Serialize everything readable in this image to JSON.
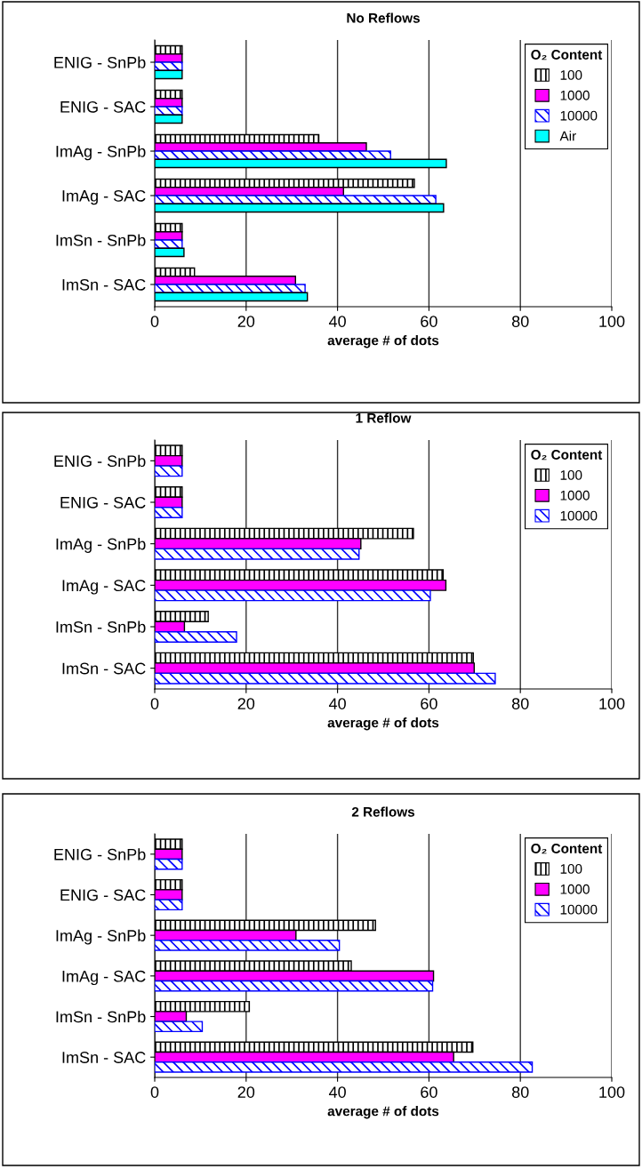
{
  "chart_data": [
    {
      "type": "bar",
      "orientation": "horizontal",
      "title": "No Reflows",
      "xlabel": "average # of dots",
      "legend_title": "O₂ Content",
      "legend": "top right",
      "grid": "x",
      "categories": [
        "ENIG - SnPb",
        "ENIG - SAC",
        "ImAg - SnPb",
        "ImAg - SAC",
        "ImSn - SnPb",
        "ImSn - SAC"
      ],
      "xlim": [
        0,
        100
      ],
      "xticks": [
        0,
        20,
        40,
        60,
        80,
        100
      ],
      "series": [
        {
          "name": "100",
          "color": "#000000",
          "values": [
            6,
            6,
            35.9,
            56.8,
            6,
            8.7
          ]
        },
        {
          "name": "1000",
          "color": "#ff00ff",
          "values": [
            6,
            6,
            46.3,
            41.3,
            6,
            30.8
          ]
        },
        {
          "name": "10000",
          "color": "#0000ff",
          "values": [
            6,
            6,
            51.6,
            61.5,
            6,
            32.9
          ]
        },
        {
          "name": "Air",
          "color": "#00ffff",
          "values": [
            6,
            6,
            63.8,
            63.2,
            6.4,
            33.4
          ]
        }
      ]
    },
    {
      "type": "bar",
      "orientation": "horizontal",
      "title": "1 Reflow",
      "xlabel": "average # of dots",
      "legend_title": "O₂ Content",
      "legend": "top right",
      "grid": "x",
      "categories": [
        "ENIG - SnPb",
        "ENIG - SAC",
        "ImAg - SnPb",
        "ImAg - SAC",
        "ImSn - SnPb",
        "ImSn - SAC"
      ],
      "xlim": [
        0,
        100
      ],
      "xticks": [
        0,
        20,
        40,
        60,
        80,
        100
      ],
      "series": [
        {
          "name": "100",
          "color": "#000000",
          "values": [
            6,
            6,
            56.6,
            63.1,
            11.7,
            69.7
          ]
        },
        {
          "name": "1000",
          "color": "#ff00ff",
          "values": [
            6,
            6,
            45.1,
            63.7,
            6.5,
            69.9
          ]
        },
        {
          "name": "10000",
          "color": "#0000ff",
          "values": [
            6,
            6,
            44.7,
            60.3,
            17.9,
            74.5
          ]
        }
      ]
    },
    {
      "type": "bar",
      "orientation": "horizontal",
      "title": "2 Reflows",
      "xlabel": "average # of dots",
      "legend_title": "O₂ Content",
      "legend": "top right",
      "grid": "x",
      "categories": [
        "ENIG - SnPb",
        "ENIG - SAC",
        "ImAg - SnPb",
        "ImAg - SAC",
        "ImSn - SnPb",
        "ImSn - SAC"
      ],
      "xlim": [
        0,
        100
      ],
      "xticks": [
        0,
        20,
        40,
        60,
        80,
        100
      ],
      "series": [
        {
          "name": "100",
          "color": "#000000",
          "values": [
            6,
            6,
            48.3,
            43.0,
            20.7,
            69.6
          ]
        },
        {
          "name": "1000",
          "color": "#ff00ff",
          "values": [
            6,
            6,
            30.9,
            61.0,
            6.9,
            65.4
          ]
        },
        {
          "name": "10000",
          "color": "#0000ff",
          "values": [
            6,
            6,
            40.4,
            60.8,
            10.4,
            82.6
          ]
        }
      ]
    }
  ]
}
